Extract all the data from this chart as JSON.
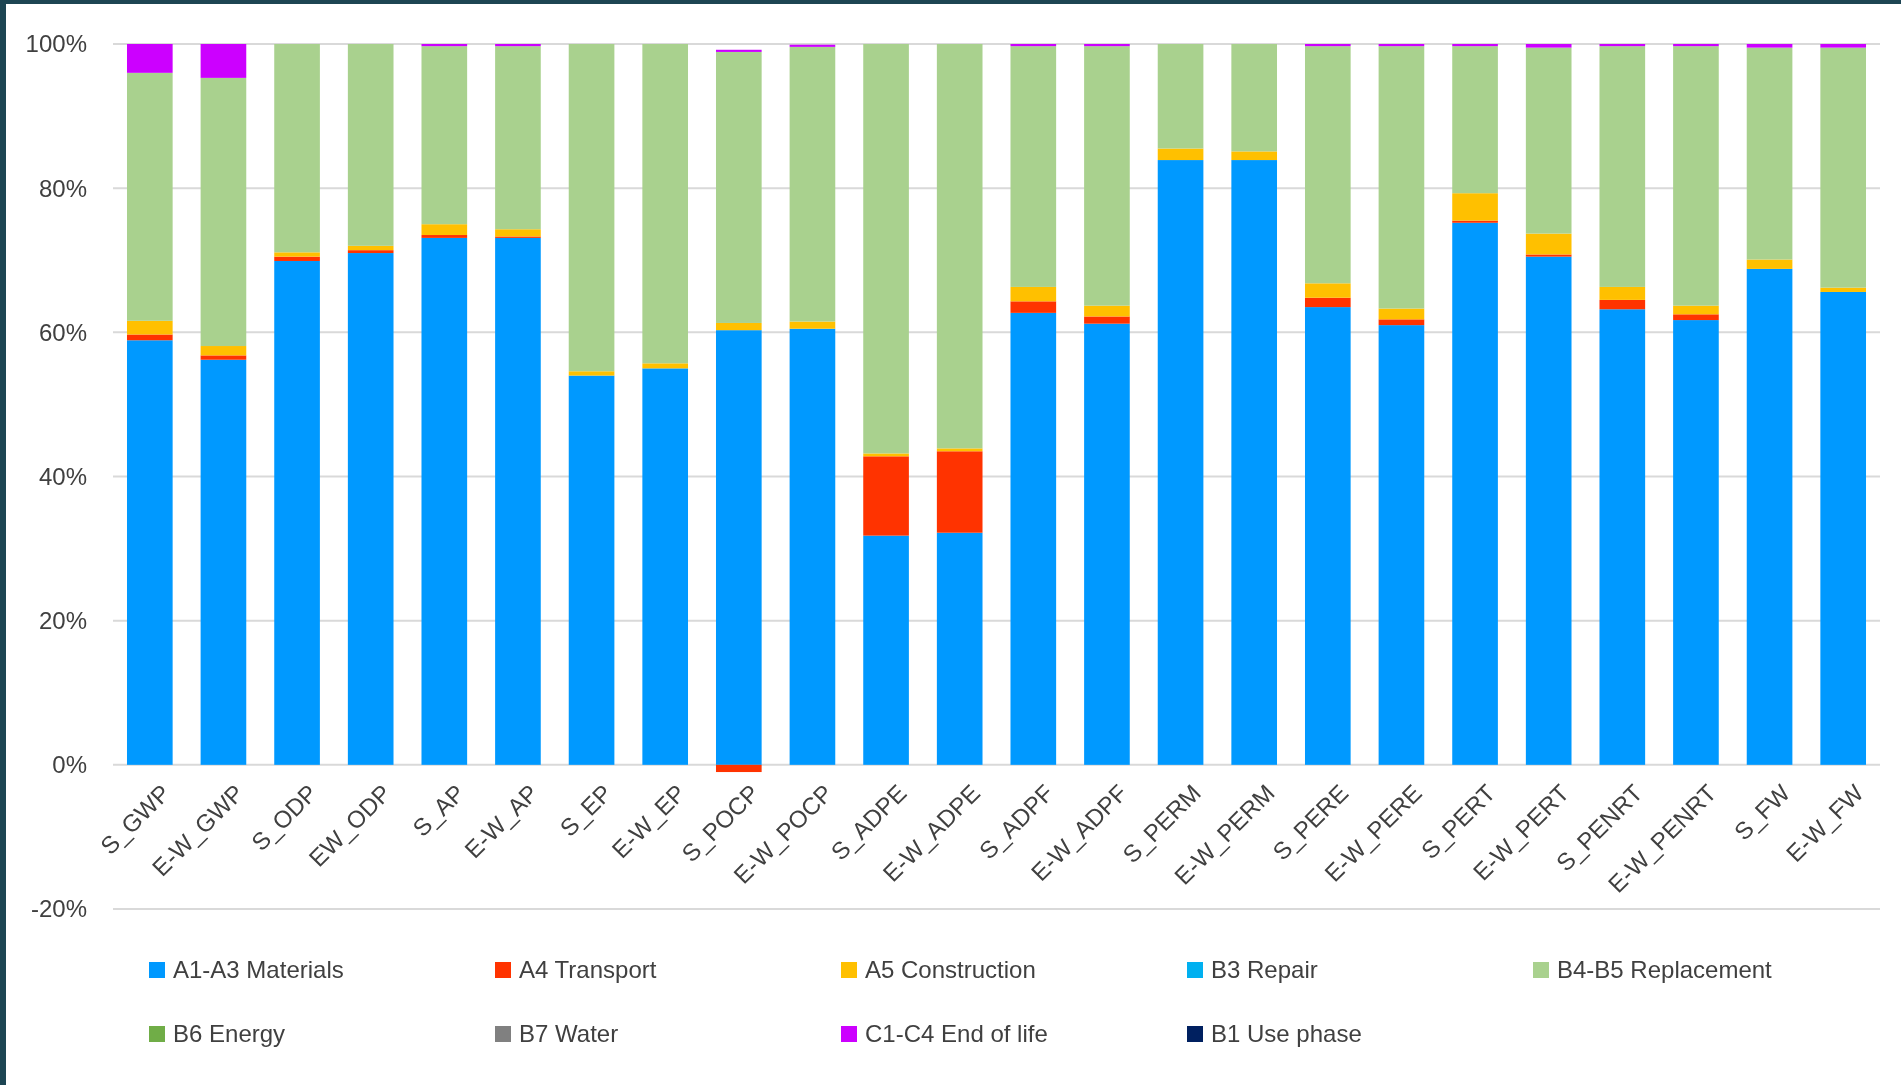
{
  "chart_data": {
    "type": "bar",
    "stacked": true,
    "grid": "y",
    "legend": "bottom",
    "categories": [
      "S_GWP",
      "E-W_GWP",
      "S_ODP",
      "EW_ODP",
      "S_AP",
      "E-W_AP",
      "S_EP",
      "E-W_EP",
      "S_POCP",
      "E-W_POCP",
      "S_ADPE",
      "E-W_ADPE",
      "S_ADPF",
      "E-W_ADPF",
      "S_PERM",
      "E-W_PERM",
      "S_PERE",
      "E-W_PERE",
      "S_PERT",
      "E-W_PERT",
      "S_PENRT",
      "E-W_PENRT",
      "S_FW",
      "E-W_FW"
    ],
    "ylim": [
      -20,
      100
    ],
    "yticks": [
      {
        "value": -20,
        "label": "-20%"
      },
      {
        "value": 0,
        "label": "0%"
      },
      {
        "value": 20,
        "label": "20%"
      },
      {
        "value": 40,
        "label": "40%"
      },
      {
        "value": 60,
        "label": "60%"
      },
      {
        "value": 80,
        "label": "80%"
      },
      {
        "value": 100,
        "label": "100%"
      }
    ],
    "series": [
      {
        "name": "A1-A3 Materials",
        "color": "#0099ff",
        "values": [
          58.9,
          56.2,
          69.9,
          71.0,
          73.1,
          73.1,
          54.0,
          55.0,
          60.3,
          60.5,
          31.8,
          32.2,
          62.7,
          61.2,
          83.9,
          83.9,
          63.5,
          61.0,
          75.2,
          70.5,
          63.2,
          61.7,
          68.8,
          65.6
        ]
      },
      {
        "name": "A4 Transport",
        "color": "#ff3300",
        "values": [
          0.8,
          0.6,
          0.6,
          0.4,
          0.4,
          0.2,
          0,
          0,
          -1.0,
          0,
          11.0,
          11.3,
          1.6,
          1.0,
          0,
          0,
          1.3,
          0.8,
          0.3,
          0.3,
          1.3,
          0.8,
          0,
          0
        ]
      },
      {
        "name": "A5 Construction",
        "color": "#ffc000",
        "values": [
          1.9,
          1.3,
          0.6,
          0.6,
          1.5,
          1.0,
          0.6,
          0.7,
          1.0,
          1.0,
          0.4,
          0.4,
          2.0,
          1.5,
          1.6,
          1.2,
          2.0,
          1.5,
          3.8,
          2.9,
          1.8,
          1.2,
          1.3,
          0.6
        ]
      },
      {
        "name": "B3 Repair",
        "color": "#00b0f0",
        "values": [
          0,
          0,
          0,
          0,
          0,
          0,
          0,
          0,
          0,
          0,
          0,
          0,
          0,
          0,
          0,
          0,
          0,
          0,
          0,
          0,
          0,
          0,
          0,
          0
        ]
      },
      {
        "name": "B4-B5 Replacement",
        "color": "#a9d18e",
        "values": [
          34.4,
          37.2,
          28.9,
          28.0,
          24.7,
          25.4,
          45.4,
          44.3,
          37.6,
          38.1,
          56.8,
          56.1,
          33.4,
          36.0,
          14.5,
          14.9,
          32.9,
          36.4,
          20.4,
          25.8,
          33.4,
          36.0,
          29.4,
          33.3
        ]
      },
      {
        "name": "B6 Energy",
        "color": "#70ad47",
        "values": [
          0,
          0,
          0,
          0,
          0,
          0,
          0,
          0,
          0,
          0,
          0,
          0,
          0,
          0,
          0,
          0,
          0,
          0,
          0,
          0,
          0,
          0,
          0,
          0
        ]
      },
      {
        "name": "B7 Water",
        "color": "#808080",
        "values": [
          0,
          0,
          0,
          0,
          0,
          0,
          0,
          0,
          0,
          0,
          0,
          0,
          0,
          0,
          0,
          0,
          0,
          0,
          0,
          0,
          0,
          0,
          0,
          0
        ]
      },
      {
        "name": "C1-C4 End of life",
        "color": "#cc00ff",
        "values": [
          4.0,
          4.7,
          0,
          0,
          0.3,
          0.3,
          0,
          0,
          0.3,
          0.3,
          0,
          0,
          0.3,
          0.3,
          0,
          0,
          0.3,
          0.3,
          0.3,
          0.5,
          0.3,
          0.3,
          0.5,
          0.5
        ]
      },
      {
        "name": "B1 Use phase",
        "color": "#002060",
        "values": [
          0,
          0,
          0,
          0,
          0,
          0,
          0,
          0,
          0,
          0,
          0,
          0,
          0,
          0,
          0,
          0,
          0,
          0,
          0,
          0,
          0,
          0,
          0,
          0
        ]
      }
    ]
  }
}
